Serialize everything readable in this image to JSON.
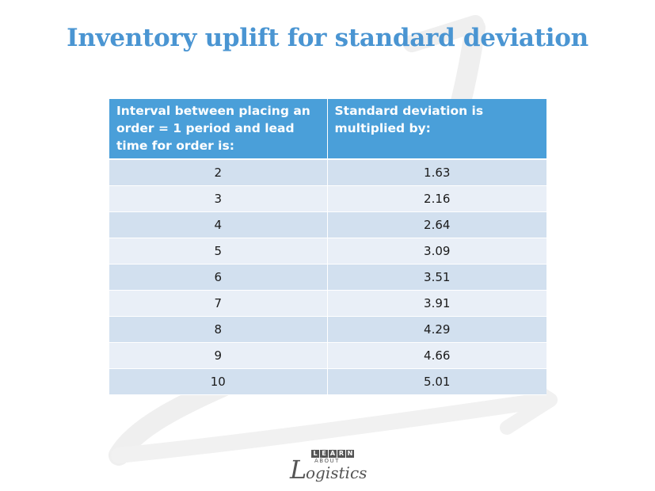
{
  "title": "Inventory uplift for standard deviation",
  "table": {
    "headers": [
      "Interval between placing an order = 1 period and lead time for order is:",
      "Standard deviation is multiplied by:"
    ],
    "rows": [
      [
        "2",
        "1.63"
      ],
      [
        "3",
        "2.16"
      ],
      [
        "4",
        "2.64"
      ],
      [
        "5",
        "3.09"
      ],
      [
        "6",
        "3.51"
      ],
      [
        "7",
        "3.91"
      ],
      [
        "8",
        "4.29"
      ],
      [
        "9",
        "4.66"
      ],
      [
        "10",
        "5.01"
      ]
    ]
  },
  "logo": {
    "learn_letters": [
      "L",
      "E",
      "A",
      "R",
      "N"
    ],
    "about": "ABOUT",
    "logistics_initial": "L",
    "logistics_rest": "ogistics"
  },
  "colors": {
    "title": "#4a95d2",
    "header_bg": "#4a9fd9",
    "row_odd": "#d2e0ef",
    "row_even": "#e9eff7"
  }
}
